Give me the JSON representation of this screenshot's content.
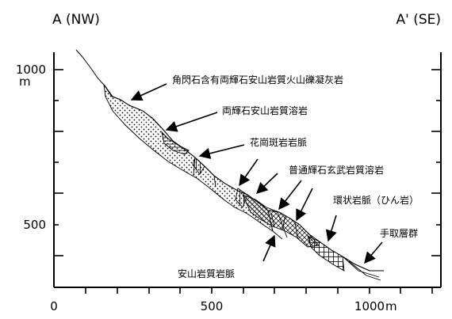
{
  "section": {
    "left_corner": "A (NW)",
    "right_corner": "A' (SE)",
    "y_axis": {
      "ticks": [
        {
          "label": "1000",
          "unit": "m"
        },
        {
          "label": "500",
          "unit": ""
        }
      ]
    },
    "x_axis": {
      "ticks": [
        "0",
        "500",
        "1000"
      ],
      "unit": "m"
    },
    "units": {
      "points": [
        {
          "label": "角閃石含有両輝石安山岩質火山礫凝灰岩",
          "pattern": "dots"
        },
        {
          "label": "両輝石安山岩質溶岩",
          "pattern": "hatch-horizontal"
        },
        {
          "label": "花崗斑岩岩脈",
          "pattern": "hatch-vertical"
        },
        {
          "label": "普通輝石玄武岩質溶岩",
          "pattern": "cross-hatch"
        },
        {
          "label": "環状岩脈（ひん岩）",
          "pattern": "grid"
        },
        {
          "label": "手取層群",
          "pattern": "lines"
        },
        {
          "label": "安山岩質岩脈",
          "pattern": "lines"
        }
      ]
    }
  }
}
